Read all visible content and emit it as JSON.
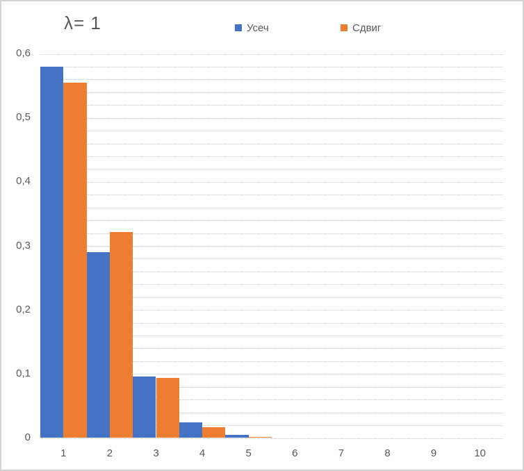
{
  "chart_data": {
    "type": "bar",
    "title": "λ= 1",
    "categories": [
      "1",
      "2",
      "3",
      "4",
      "5",
      "6",
      "7",
      "8",
      "9",
      "10"
    ],
    "series": [
      {
        "name": "Усеч",
        "color": "#4472C4",
        "values": [
          0.58,
          0.29,
          0.096,
          0.024,
          0.005,
          0,
          0,
          0,
          0,
          0
        ]
      },
      {
        "name": "Сдвиг",
        "color": "#ED7D31",
        "values": [
          0.555,
          0.322,
          0.094,
          0.017,
          0.002,
          0,
          0,
          0,
          0,
          0
        ]
      }
    ],
    "xlabel": "",
    "ylabel": "",
    "y_axis": {
      "min": 0,
      "max": 0.6,
      "major_unit": 0.1,
      "minor_unit": 0.02,
      "tick_labels": [
        "0",
        "0,1",
        "0,2",
        "0,3",
        "0,4",
        "0,5",
        "0,6"
      ],
      "decimal_separator": ","
    },
    "legend_position": "top",
    "grid": true,
    "gridline_color": "#D9D9D9",
    "bar_gap_percent": 0,
    "text_color": "#595959",
    "background_color": "#FFFFFF",
    "border_color": "#D3D3D3"
  }
}
